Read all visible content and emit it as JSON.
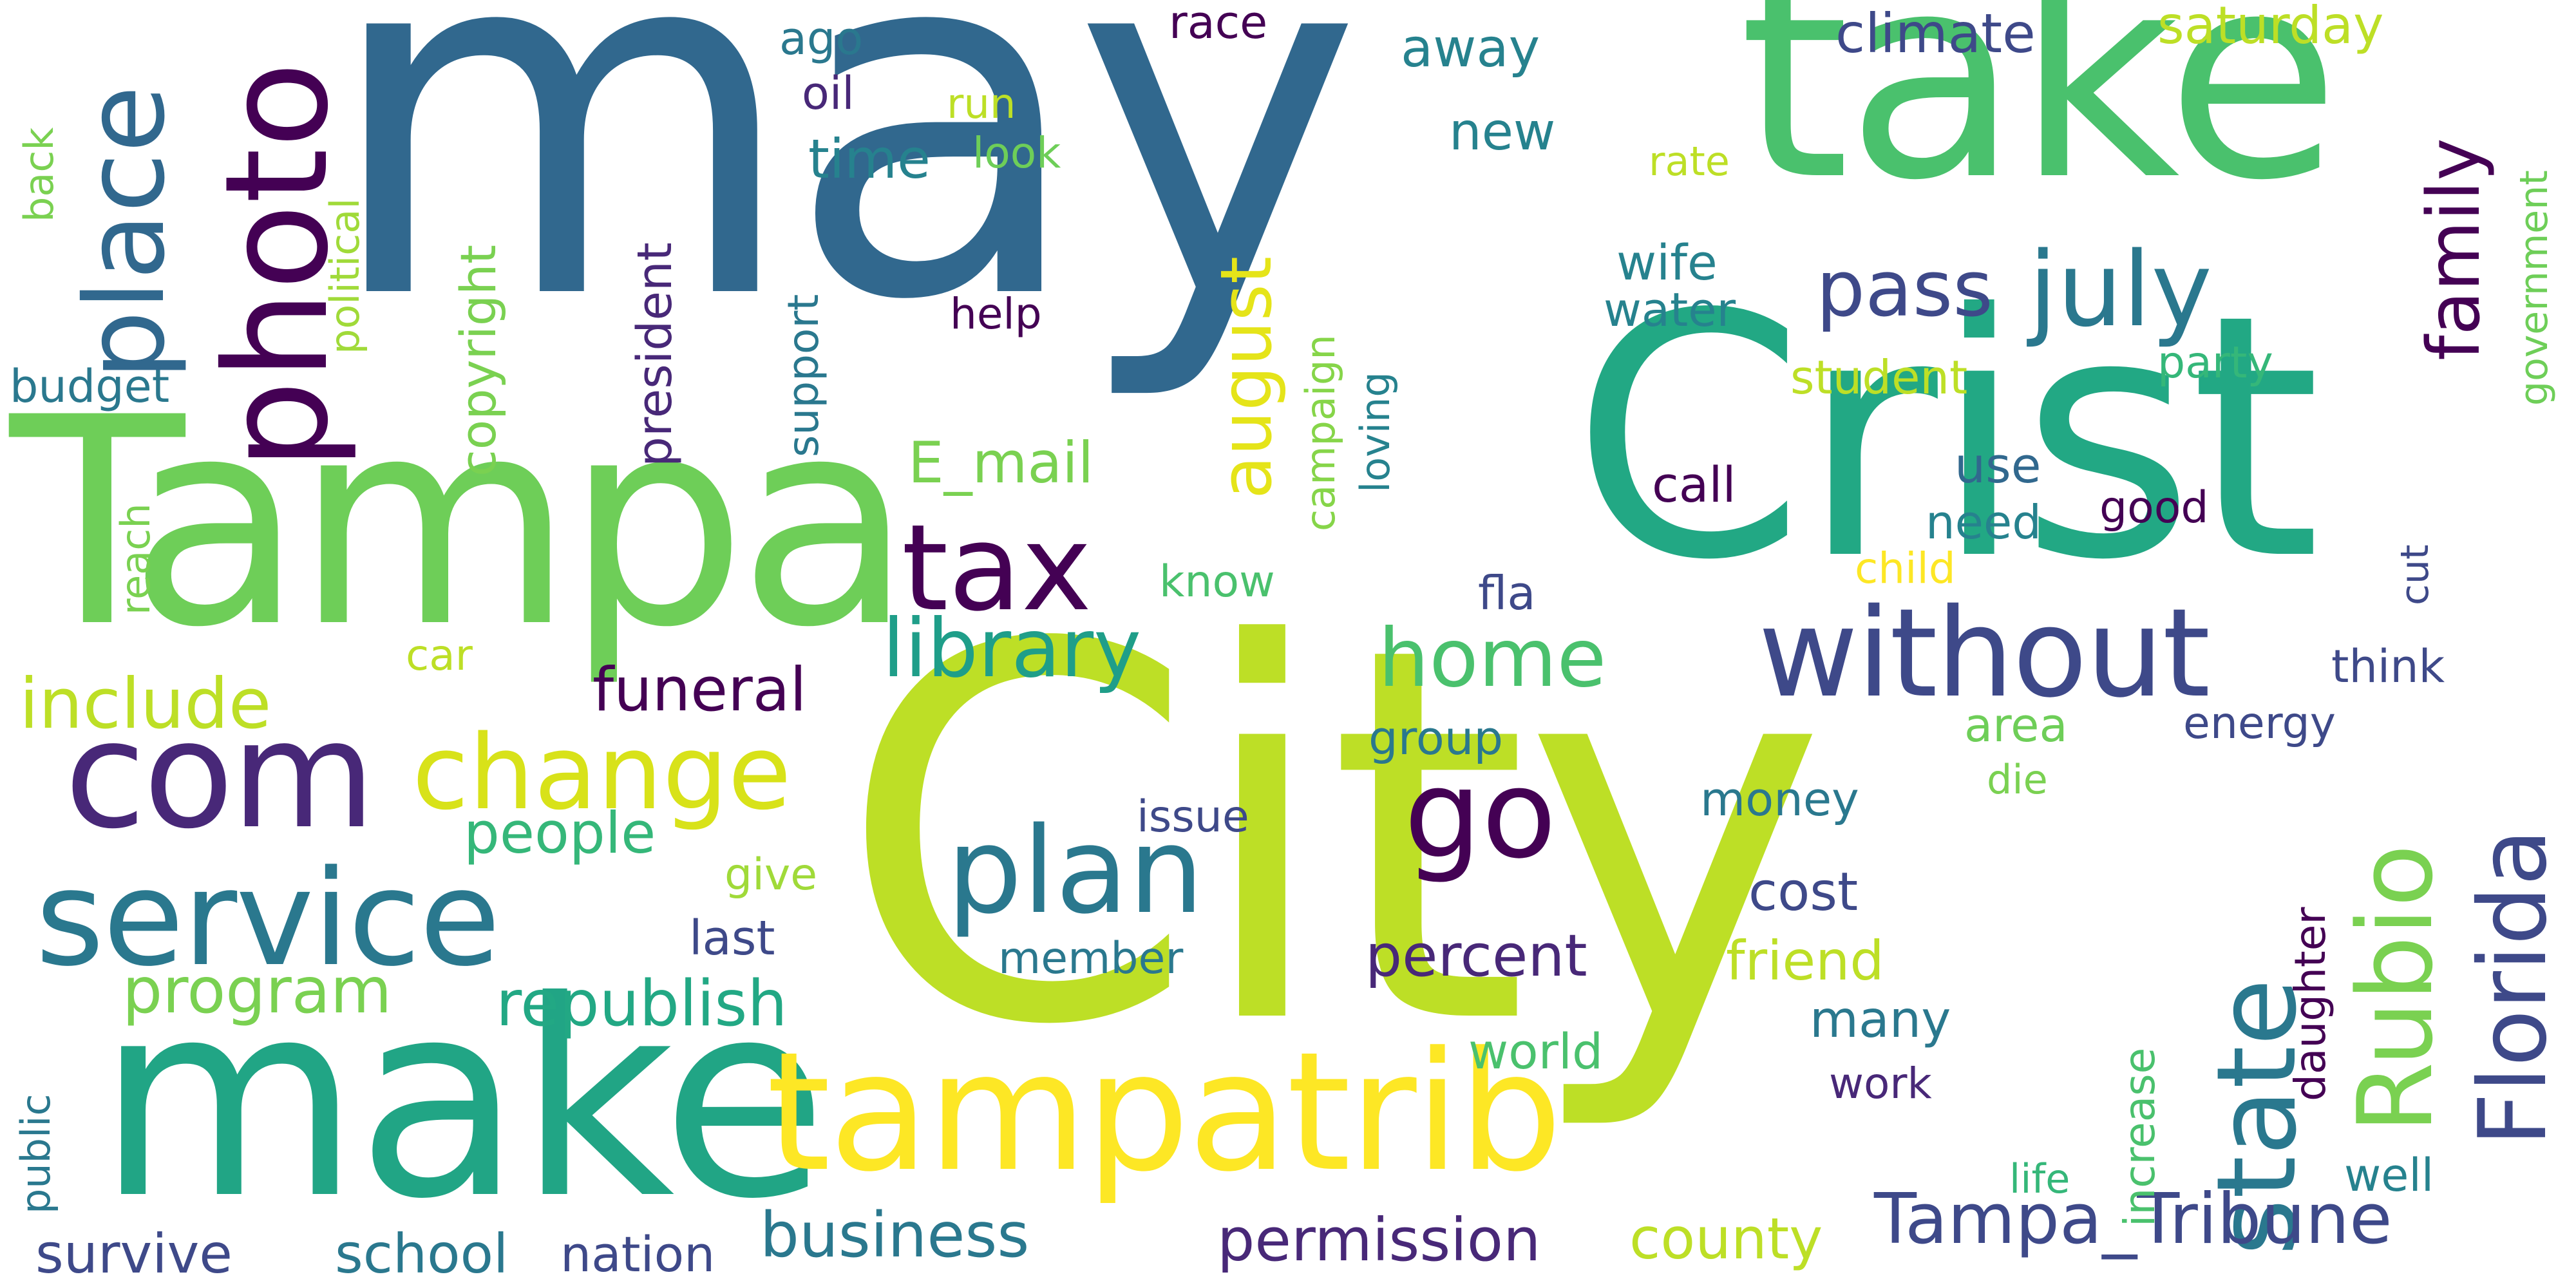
{
  "palette": {
    "dark_purple": "#440154",
    "indigo": "#482878",
    "slate_blue": "#3e4989",
    "steel_blue": "#31688e",
    "teal_blue": "#26828e",
    "teal": "#1f9e89",
    "green": "#35b779",
    "light_green": "#6ece58",
    "lime": "#b5de2b",
    "yellow": "#fde725"
  },
  "words": [
    {
      "text": "may",
      "color": "#31688e"
    },
    {
      "text": "City",
      "color": "#bddf26"
    },
    {
      "text": "Tampa",
      "color": "#6ece58"
    },
    {
      "text": "take",
      "color": "#4ac16d"
    },
    {
      "text": "Crist",
      "color": "#22a884"
    },
    {
      "text": "make",
      "color": "#21a585"
    },
    {
      "text": "tampatrib",
      "color": "#fde725"
    },
    {
      "text": "com",
      "color": "#482878"
    },
    {
      "text": "photo",
      "color": "#440154"
    },
    {
      "text": "place",
      "color": "#31688e"
    },
    {
      "text": "service",
      "color": "#2a788e"
    },
    {
      "text": "change",
      "color": "#d8e219"
    },
    {
      "text": "plan",
      "color": "#2a788e"
    },
    {
      "text": "tax",
      "color": "#440154"
    },
    {
      "text": "go",
      "color": "#440154"
    },
    {
      "text": "without",
      "color": "#3e4989"
    },
    {
      "text": "state",
      "color": "#2a788e"
    },
    {
      "text": "Rubio",
      "color": "#7ad151"
    },
    {
      "text": "Florida",
      "color": "#3e4989"
    },
    {
      "text": "july",
      "color": "#2a788e"
    },
    {
      "text": "library",
      "color": "#1f9e89"
    },
    {
      "text": "home",
      "color": "#4ac16d"
    },
    {
      "text": "pass",
      "color": "#3e4989"
    },
    {
      "text": "Tampa_Tribune",
      "color": "#3e4989"
    },
    {
      "text": "family",
      "color": "#440154"
    },
    {
      "text": "august",
      "color": "#e5e419"
    },
    {
      "text": "include",
      "color": "#bddf26"
    },
    {
      "text": "program",
      "color": "#7ad151"
    },
    {
      "text": "republish",
      "color": "#22a884"
    },
    {
      "text": "business",
      "color": "#2a788e"
    },
    {
      "text": "permission",
      "color": "#482878"
    },
    {
      "text": "county",
      "color": "#bddf26"
    },
    {
      "text": "survive",
      "color": "#3e4989"
    },
    {
      "text": "school",
      "color": "#2a788e"
    },
    {
      "text": "nation",
      "color": "#3e4989"
    },
    {
      "text": "funeral",
      "color": "#440154"
    },
    {
      "text": "people",
      "color": "#35b779"
    },
    {
      "text": "percent",
      "color": "#482878"
    },
    {
      "text": "E_mail",
      "color": "#7ad151"
    },
    {
      "text": "president",
      "color": "#482878"
    },
    {
      "text": "copyright",
      "color": "#7ad151"
    },
    {
      "text": "political",
      "color": "#a0da39"
    },
    {
      "text": "support",
      "color": "#2a788e"
    },
    {
      "text": "campaign",
      "color": "#86d549"
    },
    {
      "text": "loving",
      "color": "#26828e"
    },
    {
      "text": "climate",
      "color": "#3e4989"
    },
    {
      "text": "saturday",
      "color": "#bddf26"
    },
    {
      "text": "away",
      "color": "#26828e"
    },
    {
      "text": "time",
      "color": "#26828e"
    },
    {
      "text": "new",
      "color": "#26828e"
    },
    {
      "text": "race",
      "color": "#440154"
    },
    {
      "text": "ago",
      "color": "#2a788e"
    },
    {
      "text": "oil",
      "color": "#482878"
    },
    {
      "text": "run",
      "color": "#bddf26"
    },
    {
      "text": "look",
      "color": "#6ece58"
    },
    {
      "text": "help",
      "color": "#440154"
    },
    {
      "text": "back",
      "color": "#7ad151"
    },
    {
      "text": "budget",
      "color": "#2a788e"
    },
    {
      "text": "reach",
      "color": "#7ad151"
    },
    {
      "text": "car",
      "color": "#bddf26"
    },
    {
      "text": "rate",
      "color": "#bddf26"
    },
    {
      "text": "wife",
      "color": "#26828e"
    },
    {
      "text": "water",
      "color": "#26828e"
    },
    {
      "text": "student",
      "color": "#bddf26"
    },
    {
      "text": "party",
      "color": "#35b779"
    },
    {
      "text": "government",
      "color": "#6ece58"
    },
    {
      "text": "call",
      "color": "#440154"
    },
    {
      "text": "use",
      "color": "#31688e"
    },
    {
      "text": "need",
      "color": "#26828e"
    },
    {
      "text": "good",
      "color": "#440154"
    },
    {
      "text": "child",
      "color": "#fde725"
    },
    {
      "text": "cut",
      "color": "#3e4989"
    },
    {
      "text": "know",
      "color": "#4ac16d"
    },
    {
      "text": "fla",
      "color": "#3e4989"
    },
    {
      "text": "think",
      "color": "#3e4989"
    },
    {
      "text": "energy",
      "color": "#3e4989"
    },
    {
      "text": "area",
      "color": "#6ece58"
    },
    {
      "text": "die",
      "color": "#7ad151"
    },
    {
      "text": "group",
      "color": "#2a788e"
    },
    {
      "text": "issue",
      "color": "#3e4989"
    },
    {
      "text": "money",
      "color": "#2a788e"
    },
    {
      "text": "give",
      "color": "#a0da39"
    },
    {
      "text": "last",
      "color": "#3e4989"
    },
    {
      "text": "member",
      "color": "#2a788e"
    },
    {
      "text": "cost",
      "color": "#3e4989"
    },
    {
      "text": "friend",
      "color": "#bddf26"
    },
    {
      "text": "daughter",
      "color": "#440154"
    },
    {
      "text": "many",
      "color": "#2a788e"
    },
    {
      "text": "world",
      "color": "#4ac16d"
    },
    {
      "text": "work",
      "color": "#482878"
    },
    {
      "text": "increase",
      "color": "#4ac16d"
    },
    {
      "text": "life",
      "color": "#35b779"
    },
    {
      "text": "well",
      "color": "#26828e"
    },
    {
      "text": "public",
      "color": "#2a788e"
    }
  ]
}
